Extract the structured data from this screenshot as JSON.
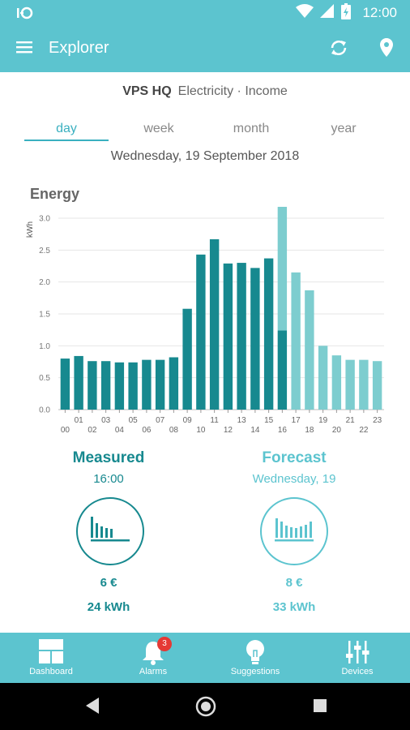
{
  "status_bar": {
    "time": "12:00",
    "icons": [
      "notification-icon",
      "wifi-icon",
      "signal-icon",
      "battery-icon"
    ]
  },
  "app_bar": {
    "title": "Explorer",
    "icons": [
      "menu-icon",
      "refresh-icon",
      "location-pin-icon"
    ]
  },
  "site": {
    "name": "VPS HQ",
    "meta": "Electricity · Income"
  },
  "tabs": [
    {
      "label": "day",
      "active": true
    },
    {
      "label": "week",
      "active": false
    },
    {
      "label": "month",
      "active": false
    },
    {
      "label": "year",
      "active": false
    }
  ],
  "date": "Wednesday, 19 September 2018",
  "chart_title": "Energy",
  "chart_data": {
    "type": "bar",
    "ylabel": "kWh",
    "xlabel": "",
    "ylim": [
      0,
      3.0
    ],
    "yticks": [
      "0.0",
      "0.5",
      "1.0",
      "1.5",
      "2.0",
      "2.5",
      "3.0"
    ],
    "grid": true,
    "categories": [
      "00",
      "01",
      "02",
      "03",
      "04",
      "05",
      "06",
      "07",
      "08",
      "09",
      "10",
      "11",
      "12",
      "13",
      "14",
      "15",
      "16",
      "17",
      "18",
      "19",
      "20",
      "21",
      "22",
      "23"
    ],
    "series": [
      {
        "values": [
          0.8,
          0.84,
          0.76,
          0.76,
          0.74,
          0.74,
          0.78,
          0.78,
          0.82,
          1.58,
          2.43,
          2.67,
          2.29,
          2.3,
          2.22,
          2.37,
          1.24,
          0,
          0,
          0,
          0,
          0,
          0,
          0
        ],
        "color": "#17898f"
      },
      {
        "values": [
          0,
          0,
          0,
          0,
          0,
          0,
          0,
          0,
          0,
          0,
          0,
          0,
          0,
          0,
          0,
          0,
          2.23,
          2.15,
          1.87,
          1.0,
          0.85,
          0.78,
          0.78,
          0.76
        ],
        "color": "#7dcdcf"
      }
    ]
  },
  "measured": {
    "title": "Measured",
    "sub": "16:00",
    "cost": "6 €",
    "energy": "24 kWh",
    "color": "#17898f",
    "icon": "bar-chart-icon"
  },
  "forecast": {
    "title": "Forecast",
    "sub": "Wednesday, 19",
    "cost": "8 €",
    "energy": "33 kWh",
    "color": "#5cc4cf",
    "icon": "bar-chart-icon"
  },
  "bottom_nav": [
    {
      "label": "Dashboard",
      "icon": "dashboard-icon"
    },
    {
      "label": "Alarms",
      "icon": "bell-icon",
      "badge": "3"
    },
    {
      "label": "Suggestions",
      "icon": "lightbulb-icon"
    },
    {
      "label": "Devices",
      "icon": "sliders-icon"
    }
  ],
  "system_nav": [
    "back-icon",
    "home-icon",
    "recents-icon"
  ]
}
